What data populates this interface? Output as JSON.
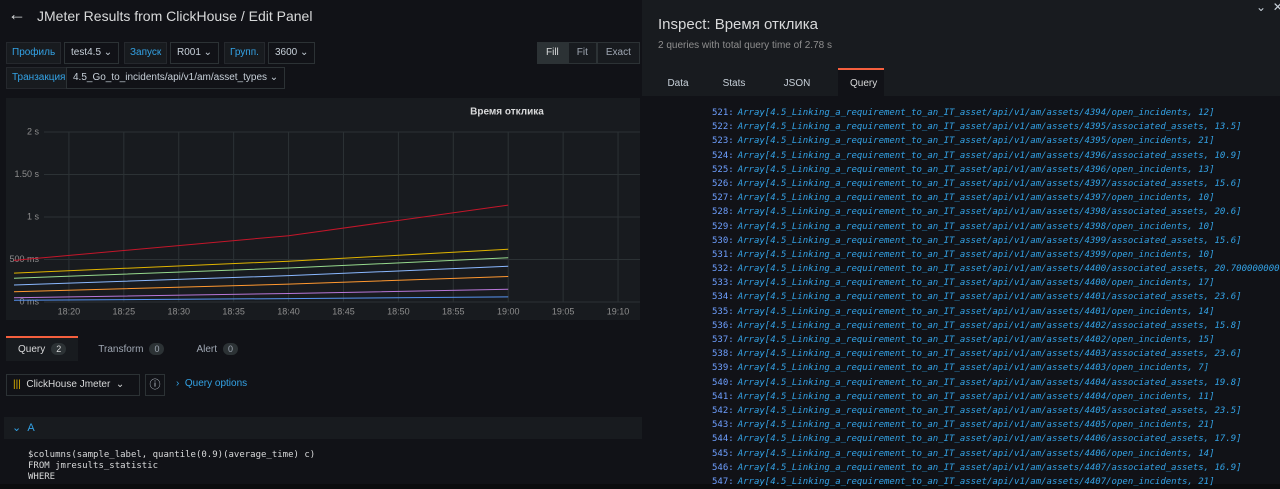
{
  "header": {
    "title": "JMeter Results from ClickHouse / Edit Panel"
  },
  "variables": [
    {
      "label": "Профиль",
      "value": "test4.5"
    },
    {
      "label": "Запуск",
      "value": "R001"
    },
    {
      "label": "Групп.",
      "value": "3600"
    }
  ],
  "transaction": {
    "label": "Транзакция",
    "value": "4.5_Go_to_incidents/api/v1/am/asset_types"
  },
  "view_modes": [
    "Fill",
    "Fit",
    "Exact"
  ],
  "chart_data": {
    "type": "line",
    "title": "Время отклика",
    "x": [
      "18:15",
      "18:40",
      "19:00"
    ],
    "xlim": [
      "18:15",
      "19:12"
    ],
    "xticks": [
      "18:20",
      "18:25",
      "18:30",
      "18:35",
      "18:40",
      "18:45",
      "18:50",
      "18:55",
      "19:00",
      "19:05",
      "19:10"
    ],
    "ylim": [
      0,
      2000
    ],
    "yticks": [
      {
        "value": 0,
        "label": "0 ms"
      },
      {
        "value": 500,
        "label": "500 ms"
      },
      {
        "value": 1000,
        "label": "1 s"
      },
      {
        "value": 1500,
        "label": "1.50 s"
      },
      {
        "value": 2000,
        "label": "2 s"
      }
    ],
    "grid": true,
    "series": [
      {
        "color": "#c4162a",
        "values": [
          490,
          780,
          1140
        ]
      },
      {
        "color": "#e0b400",
        "values": [
          340,
          480,
          620
        ]
      },
      {
        "color": "#96d98d",
        "values": [
          280,
          400,
          520
        ]
      },
      {
        "color": "#8ab8ff",
        "values": [
          200,
          310,
          420
        ]
      },
      {
        "color": "#ff9830",
        "values": [
          120,
          210,
          300
        ]
      },
      {
        "color": "#b877d9",
        "values": [
          50,
          100,
          150
        ]
      },
      {
        "color": "#5794f2",
        "values": [
          20,
          40,
          60
        ]
      }
    ]
  },
  "editor": {
    "tabs": [
      {
        "label": "Query",
        "count": "2"
      },
      {
        "label": "Transform",
        "count": "0"
      },
      {
        "label": "Alert",
        "count": "0"
      }
    ],
    "datasource": "ClickHouse Jmeter",
    "query_options": "Query options",
    "query_name": "A",
    "code": [
      "$columns(sample_label, quantile(0.9)(average_time) c)",
      "FROM jmresults_statistic",
      "WHERE"
    ]
  },
  "inspect": {
    "title": "Inspect: Время отклика",
    "subtitle": "2 queries with total query time of 2.78 s",
    "tabs": [
      "Data",
      "Stats",
      "JSON",
      "Query"
    ],
    "lines": [
      {
        "n": "521:",
        "text": "Array[4.5_Linking_a_requirement_to_an_IT_asset/api/v1/am/assets/4394/open_incidents, 12]"
      },
      {
        "n": "522:",
        "text": "Array[4.5_Linking_a_requirement_to_an_IT_asset/api/v1/am/assets/4395/associated_assets, 13.5]"
      },
      {
        "n": "523:",
        "text": "Array[4.5_Linking_a_requirement_to_an_IT_asset/api/v1/am/assets/4395/open_incidents, 21]"
      },
      {
        "n": "524:",
        "text": "Array[4.5_Linking_a_requirement_to_an_IT_asset/api/v1/am/assets/4396/associated_assets, 10.9]"
      },
      {
        "n": "525:",
        "text": "Array[4.5_Linking_a_requirement_to_an_IT_asset/api/v1/am/assets/4396/open_incidents, 13]"
      },
      {
        "n": "526:",
        "text": "Array[4.5_Linking_a_requirement_to_an_IT_asset/api/v1/am/assets/4397/associated_assets, 15.6]"
      },
      {
        "n": "527:",
        "text": "Array[4.5_Linking_a_requirement_to_an_IT_asset/api/v1/am/assets/4397/open_incidents, 10]"
      },
      {
        "n": "528:",
        "text": "Array[4.5_Linking_a_requirement_to_an_IT_asset/api/v1/am/assets/4398/associated_assets, 20.6]"
      },
      {
        "n": "529:",
        "text": "Array[4.5_Linking_a_requirement_to_an_IT_asset/api/v1/am/assets/4398/open_incidents, 10]"
      },
      {
        "n": "530:",
        "text": "Array[4.5_Linking_a_requirement_to_an_IT_asset/api/v1/am/assets/4399/associated_assets, 15.6]"
      },
      {
        "n": "531:",
        "text": "Array[4.5_Linking_a_requirement_to_an_IT_asset/api/v1/am/assets/4399/open_incidents, 10]"
      },
      {
        "n": "532:",
        "text": "Array[4.5_Linking_a_requirement_to_an_IT_asset/api/v1/am/assets/4400/associated_assets, 20.7000000000"
      },
      {
        "n": "533:",
        "text": "Array[4.5_Linking_a_requirement_to_an_IT_asset/api/v1/am/assets/4400/open_incidents, 17]"
      },
      {
        "n": "534:",
        "text": "Array[4.5_Linking_a_requirement_to_an_IT_asset/api/v1/am/assets/4401/associated_assets, 23.6]"
      },
      {
        "n": "535:",
        "text": "Array[4.5_Linking_a_requirement_to_an_IT_asset/api/v1/am/assets/4401/open_incidents, 14]"
      },
      {
        "n": "536:",
        "text": "Array[4.5_Linking_a_requirement_to_an_IT_asset/api/v1/am/assets/4402/associated_assets, 15.8]"
      },
      {
        "n": "537:",
        "text": "Array[4.5_Linking_a_requirement_to_an_IT_asset/api/v1/am/assets/4402/open_incidents, 15]"
      },
      {
        "n": "538:",
        "text": "Array[4.5_Linking_a_requirement_to_an_IT_asset/api/v1/am/assets/4403/associated_assets, 23.6]"
      },
      {
        "n": "539:",
        "text": "Array[4.5_Linking_a_requirement_to_an_IT_asset/api/v1/am/assets/4403/open_incidents, 7]"
      },
      {
        "n": "540:",
        "text": "Array[4.5_Linking_a_requirement_to_an_IT_asset/api/v1/am/assets/4404/associated_assets, 19.8]"
      },
      {
        "n": "541:",
        "text": "Array[4.5_Linking_a_requirement_to_an_IT_asset/api/v1/am/assets/4404/open_incidents, 11]"
      },
      {
        "n": "542:",
        "text": "Array[4.5_Linking_a_requirement_to_an_IT_asset/api/v1/am/assets/4405/associated_assets, 23.5]"
      },
      {
        "n": "543:",
        "text": "Array[4.5_Linking_a_requirement_to_an_IT_asset/api/v1/am/assets/4405/open_incidents, 21]"
      },
      {
        "n": "544:",
        "text": "Array[4.5_Linking_a_requirement_to_an_IT_asset/api/v1/am/assets/4406/associated_assets, 17.9]"
      },
      {
        "n": "545:",
        "text": "Array[4.5_Linking_a_requirement_to_an_IT_asset/api/v1/am/assets/4406/open_incidents, 14]"
      },
      {
        "n": "546:",
        "text": "Array[4.5_Linking_a_requirement_to_an_IT_asset/api/v1/am/assets/4407/associated_assets, 16.9]"
      },
      {
        "n": "547:",
        "text": "Array[4.5_Linking_a_requirement_to_an_IT_asset/api/v1/am/assets/4407/open_incidents, 21]"
      }
    ]
  }
}
